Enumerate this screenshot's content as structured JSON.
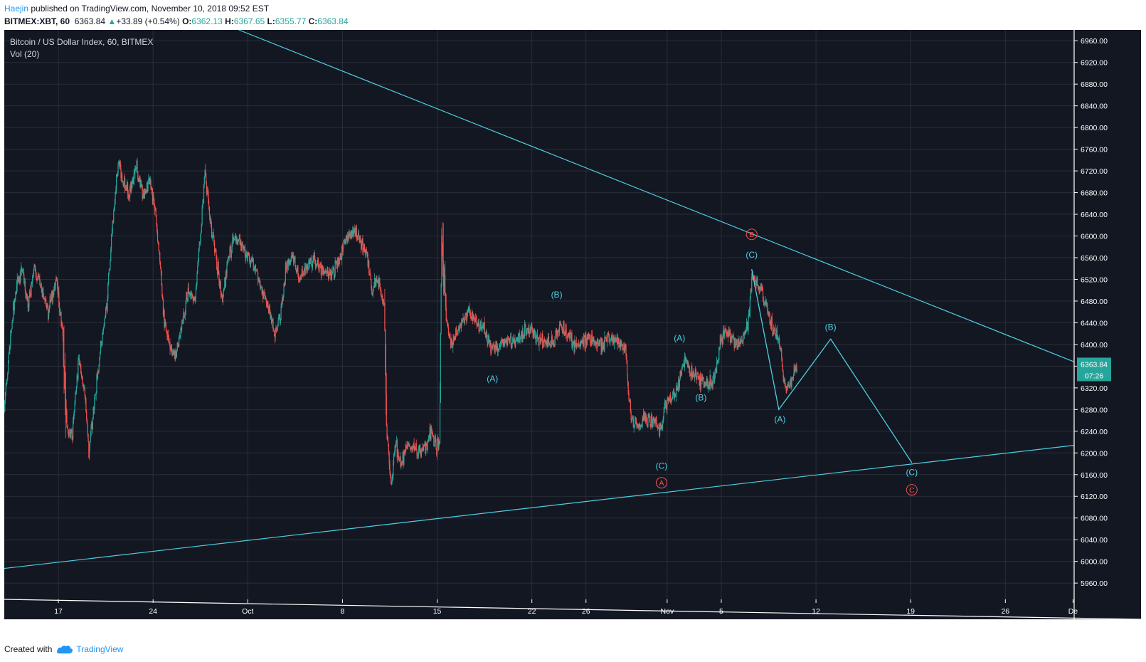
{
  "header": {
    "author": "Haejin",
    "published_text": "published on TradingView.com, November 10, 2018 09:52 EST",
    "symbol": "BITMEX:XBT, 60",
    "last": "6363.84",
    "change_arrow": "▲",
    "change": "+33.89 (+0.54%)",
    "open_label": "O:",
    "open": "6362.13",
    "high_label": "H:",
    "high": "6367.65",
    "low_label": "L:",
    "low": "6355.77",
    "close_label": "C:",
    "close": "6363.84"
  },
  "legend": {
    "title": "Bitcoin / US Dollar Index, 60, BITMEX",
    "volume": "Vol (20)"
  },
  "price_badge": {
    "price": "6363.84",
    "countdown": "07:26"
  },
  "footer": {
    "created_with": "Created with",
    "brand": "TradingView"
  },
  "colors": {
    "background": "#131722",
    "grid": "#2a2e39",
    "up": "#26a69a",
    "down": "#ef5350",
    "annotation": "#4dd0e1",
    "major_label": "#ef5350",
    "axis_text": "#d1d4dc",
    "badge": "#26a69a"
  },
  "chart_data": {
    "type": "candlestick",
    "timeframe": "60",
    "y_axis": {
      "ylim": [
        5930,
        6980
      ],
      "ticks": [
        5960,
        6000,
        6040,
        6080,
        6120,
        6160,
        6200,
        6240,
        6280,
        6320,
        6360,
        6400,
        6440,
        6480,
        6520,
        6560,
        6600,
        6640,
        6680,
        6720,
        6760,
        6800,
        6840,
        6880,
        6920,
        6960
      ],
      "tick_labels": [
        "5960.00",
        "6000.00",
        "6040.00",
        "6080.00",
        "6120.00",
        "6160.00",
        "6200.00",
        "6240.00",
        "6280.00",
        "6320.00",
        "6360.00",
        "6400.00",
        "6440.00",
        "6480.00",
        "6520.00",
        "6560.00",
        "6600.00",
        "6640.00",
        "6680.00",
        "6720.00",
        "6760.00",
        "6800.00",
        "6840.00",
        "6880.00",
        "6920.00",
        "6960.00"
      ]
    },
    "x_axis": {
      "xlim": [
        "2018-09-13 00:00",
        "2018-12-01 02:00"
      ],
      "ticks": [
        {
          "date": "2018-09-17",
          "label": "17"
        },
        {
          "date": "2018-09-24",
          "label": "24"
        },
        {
          "date": "2018-10-01",
          "label": "Oct"
        },
        {
          "date": "2018-10-08",
          "label": "8"
        },
        {
          "date": "2018-10-15",
          "label": "15"
        },
        {
          "date": "2018-10-22",
          "label": "22"
        },
        {
          "date": "2018-10-26",
          "label": "26"
        },
        {
          "date": "2018-11-01",
          "label": "Nov"
        },
        {
          "date": "2018-11-05",
          "label": "5"
        },
        {
          "date": "2018-11-12",
          "label": "12"
        },
        {
          "date": "2018-11-19",
          "label": "19"
        },
        {
          "date": "2018-11-26",
          "label": "26"
        },
        {
          "date": "2018-12-01",
          "label": "De"
        }
      ]
    },
    "price_path": [
      [
        "2018-09-13 00:00",
        6280
      ],
      [
        "2018-09-13 10:00",
        6400
      ],
      [
        "2018-09-13 20:00",
        6500
      ],
      [
        "2018-09-14 08:00",
        6540
      ],
      [
        "2018-09-14 18:00",
        6470
      ],
      [
        "2018-09-15 06:00",
        6540
      ],
      [
        "2018-09-15 18:00",
        6500
      ],
      [
        "2018-09-16 06:00",
        6460
      ],
      [
        "2018-09-16 20:00",
        6520
      ],
      [
        "2018-09-17 08:00",
        6420
      ],
      [
        "2018-09-17 14:00",
        6250
      ],
      [
        "2018-09-18 00:00",
        6230
      ],
      [
        "2018-09-18 12:00",
        6370
      ],
      [
        "2018-09-19 00:00",
        6300
      ],
      [
        "2018-09-19 06:00",
        6200
      ],
      [
        "2018-09-19 16:00",
        6300
      ],
      [
        "2018-09-20 04:00",
        6400
      ],
      [
        "2018-09-20 14:00",
        6470
      ],
      [
        "2018-09-21 00:00",
        6620
      ],
      [
        "2018-09-21 10:00",
        6740
      ],
      [
        "2018-09-21 18:00",
        6700
      ],
      [
        "2018-09-22 06:00",
        6680
      ],
      [
        "2018-09-22 18:00",
        6730
      ],
      [
        "2018-09-23 06:00",
        6680
      ],
      [
        "2018-09-23 18:00",
        6700
      ],
      [
        "2018-09-24 04:00",
        6640
      ],
      [
        "2018-09-24 12:00",
        6560
      ],
      [
        "2018-09-24 20:00",
        6440
      ],
      [
        "2018-09-25 06:00",
        6400
      ],
      [
        "2018-09-25 16:00",
        6380
      ],
      [
        "2018-09-26 04:00",
        6440
      ],
      [
        "2018-09-26 14:00",
        6500
      ],
      [
        "2018-09-27 02:00",
        6480
      ],
      [
        "2018-09-27 12:00",
        6600
      ],
      [
        "2018-09-27 20:00",
        6720
      ],
      [
        "2018-09-28 06:00",
        6620
      ],
      [
        "2018-09-28 16:00",
        6560
      ],
      [
        "2018-09-29 02:00",
        6480
      ],
      [
        "2018-09-29 14:00",
        6560
      ],
      [
        "2018-09-30 02:00",
        6600
      ],
      [
        "2018-09-30 14:00",
        6580
      ],
      [
        "2018-10-01 02:00",
        6560
      ],
      [
        "2018-10-01 14:00",
        6540
      ],
      [
        "2018-10-02 02:00",
        6500
      ],
      [
        "2018-10-02 14:00",
        6460
      ],
      [
        "2018-10-03 00:00",
        6420
      ],
      [
        "2018-10-03 10:00",
        6450
      ],
      [
        "2018-10-03 20:00",
        6540
      ],
      [
        "2018-10-04 08:00",
        6570
      ],
      [
        "2018-10-04 20:00",
        6520
      ],
      [
        "2018-10-05 08:00",
        6540
      ],
      [
        "2018-10-05 20:00",
        6560
      ],
      [
        "2018-10-06 08:00",
        6540
      ],
      [
        "2018-10-06 20:00",
        6530
      ],
      [
        "2018-10-07 08:00",
        6530
      ],
      [
        "2018-10-07 20:00",
        6560
      ],
      [
        "2018-10-08 08:00",
        6600
      ],
      [
        "2018-10-08 20:00",
        6610
      ],
      [
        "2018-10-09 08:00",
        6590
      ],
      [
        "2018-10-09 20:00",
        6560
      ],
      [
        "2018-10-10 04:00",
        6500
      ],
      [
        "2018-10-10 14:00",
        6520
      ],
      [
        "2018-10-10 20:00",
        6500
      ],
      [
        "2018-10-11 02:00",
        6470
      ],
      [
        "2018-10-11 06:00",
        6250
      ],
      [
        "2018-10-11 14:00",
        6140
      ],
      [
        "2018-10-11 22:00",
        6220
      ],
      [
        "2018-10-12 08:00",
        6180
      ],
      [
        "2018-10-12 18:00",
        6210
      ],
      [
        "2018-10-13 06:00",
        6210
      ],
      [
        "2018-10-13 18:00",
        6200
      ],
      [
        "2018-10-14 06:00",
        6220
      ],
      [
        "2018-10-14 14:00",
        6240
      ],
      [
        "2018-10-14 22:00",
        6210
      ],
      [
        "2018-10-15 04:00",
        6220
      ],
      [
        "2018-10-15 08:00",
        6600
      ],
      [
        "2018-10-15 16:00",
        6450
      ],
      [
        "2018-10-16 00:00",
        6400
      ],
      [
        "2018-10-16 10:00",
        6420
      ],
      [
        "2018-10-16 20:00",
        6440
      ],
      [
        "2018-10-17 08:00",
        6460
      ],
      [
        "2018-10-17 20:00",
        6440
      ],
      [
        "2018-10-18 08:00",
        6430
      ],
      [
        "2018-10-18 20:00",
        6400
      ],
      [
        "2018-10-19 06:00",
        6390
      ],
      [
        "2018-10-19 16:00",
        6400
      ],
      [
        "2018-10-20 04:00",
        6410
      ],
      [
        "2018-10-20 14:00",
        6400
      ],
      [
        "2018-10-21 02:00",
        6420
      ],
      [
        "2018-10-21 14:00",
        6430
      ],
      [
        "2018-10-22 02:00",
        6420
      ],
      [
        "2018-10-22 14:00",
        6410
      ],
      [
        "2018-10-23 02:00",
        6400
      ],
      [
        "2018-10-23 14:00",
        6400
      ],
      [
        "2018-10-24 02:00",
        6440
      ],
      [
        "2018-10-24 14:00",
        6420
      ],
      [
        "2018-10-25 02:00",
        6400
      ],
      [
        "2018-10-25 14:00",
        6400
      ],
      [
        "2018-10-26 02:00",
        6410
      ],
      [
        "2018-10-26 14:00",
        6410
      ],
      [
        "2018-10-27 02:00",
        6400
      ],
      [
        "2018-10-27 14:00",
        6410
      ],
      [
        "2018-10-28 02:00",
        6410
      ],
      [
        "2018-10-28 14:00",
        6400
      ],
      [
        "2018-10-28 22:00",
        6390
      ],
      [
        "2018-10-29 04:00",
        6300
      ],
      [
        "2018-10-29 10:00",
        6260
      ],
      [
        "2018-10-29 20:00",
        6250
      ],
      [
        "2018-10-30 08:00",
        6260
      ],
      [
        "2018-10-30 20:00",
        6260
      ],
      [
        "2018-10-31 08:00",
        6250
      ],
      [
        "2018-10-31 14:00",
        6240
      ],
      [
        "2018-10-31 20:00",
        6290
      ],
      [
        "2018-11-01 06:00",
        6300
      ],
      [
        "2018-11-01 16:00",
        6310
      ],
      [
        "2018-11-02 00:00",
        6350
      ],
      [
        "2018-11-02 08:00",
        6370
      ],
      [
        "2018-11-02 18:00",
        6350
      ],
      [
        "2018-11-03 06:00",
        6340
      ],
      [
        "2018-11-03 18:00",
        6330
      ],
      [
        "2018-11-04 06:00",
        6330
      ],
      [
        "2018-11-04 14:00",
        6350
      ],
      [
        "2018-11-04 22:00",
        6400
      ],
      [
        "2018-11-05 06:00",
        6430
      ],
      [
        "2018-11-05 16:00",
        6410
      ],
      [
        "2018-11-06 04:00",
        6400
      ],
      [
        "2018-11-06 14:00",
        6410
      ],
      [
        "2018-11-07 00:00",
        6440
      ],
      [
        "2018-11-07 06:00",
        6520
      ],
      [
        "2018-11-07 14:00",
        6510
      ],
      [
        "2018-11-08 00:00",
        6500
      ],
      [
        "2018-11-08 08:00",
        6470
      ],
      [
        "2018-11-08 16:00",
        6440
      ],
      [
        "2018-11-09 00:00",
        6420
      ],
      [
        "2018-11-09 08:00",
        6400
      ],
      [
        "2018-11-09 14:00",
        6340
      ],
      [
        "2018-11-09 20:00",
        6320
      ],
      [
        "2018-11-10 04:00",
        6330
      ],
      [
        "2018-11-10 09:00",
        6350
      ],
      [
        "2018-11-10 14:00",
        6364
      ]
    ],
    "trendlines": [
      {
        "name": "upper",
        "points": [
          [
            "2018-09-30 08:00",
            6980
          ],
          [
            "2018-12-01 02:00",
            6368
          ]
        ]
      },
      {
        "name": "lower",
        "points": [
          [
            "2018-09-13 00:00",
            5987
          ],
          [
            "2018-12-01 02:00",
            6214
          ]
        ]
      }
    ],
    "projection": {
      "points": [
        [
          "2018-11-07 06:00",
          6539
        ],
        [
          "2018-11-09 06:00",
          6280
        ],
        [
          "2018-11-13 02:00",
          6410
        ],
        [
          "2018-11-19 02:00",
          6182
        ]
      ]
    },
    "labels": [
      {
        "text": "(B)",
        "date": "2018-10-23 20:00",
        "price": 6492,
        "style": "minor"
      },
      {
        "text": "(A)",
        "date": "2018-10-19 02:00",
        "price": 6337,
        "style": "minor"
      },
      {
        "text": "(A)",
        "date": "2018-11-01 22:00",
        "price": 6412,
        "style": "minor"
      },
      {
        "text": "(B)",
        "date": "2018-11-03 12:00",
        "price": 6302,
        "style": "minor"
      },
      {
        "text": "(C)",
        "date": "2018-10-31 14:00",
        "price": 6176,
        "style": "minor"
      },
      {
        "text": "A",
        "date": "2018-10-31 14:00",
        "price": 6145,
        "style": "major"
      },
      {
        "text": "B",
        "date": "2018-11-07 06:00",
        "price": 6603,
        "style": "major"
      },
      {
        "text": "(C)",
        "date": "2018-11-07 06:00",
        "price": 6565,
        "style": "minor"
      },
      {
        "text": "(A)",
        "date": "2018-11-09 08:00",
        "price": 6262,
        "style": "minor"
      },
      {
        "text": "(B)",
        "date": "2018-11-13 02:00",
        "price": 6432,
        "style": "minor"
      },
      {
        "text": "(C)",
        "date": "2018-11-19 02:00",
        "price": 6164,
        "style": "minor"
      },
      {
        "text": "C",
        "date": "2018-11-19 02:00",
        "price": 6132,
        "style": "major"
      }
    ]
  }
}
